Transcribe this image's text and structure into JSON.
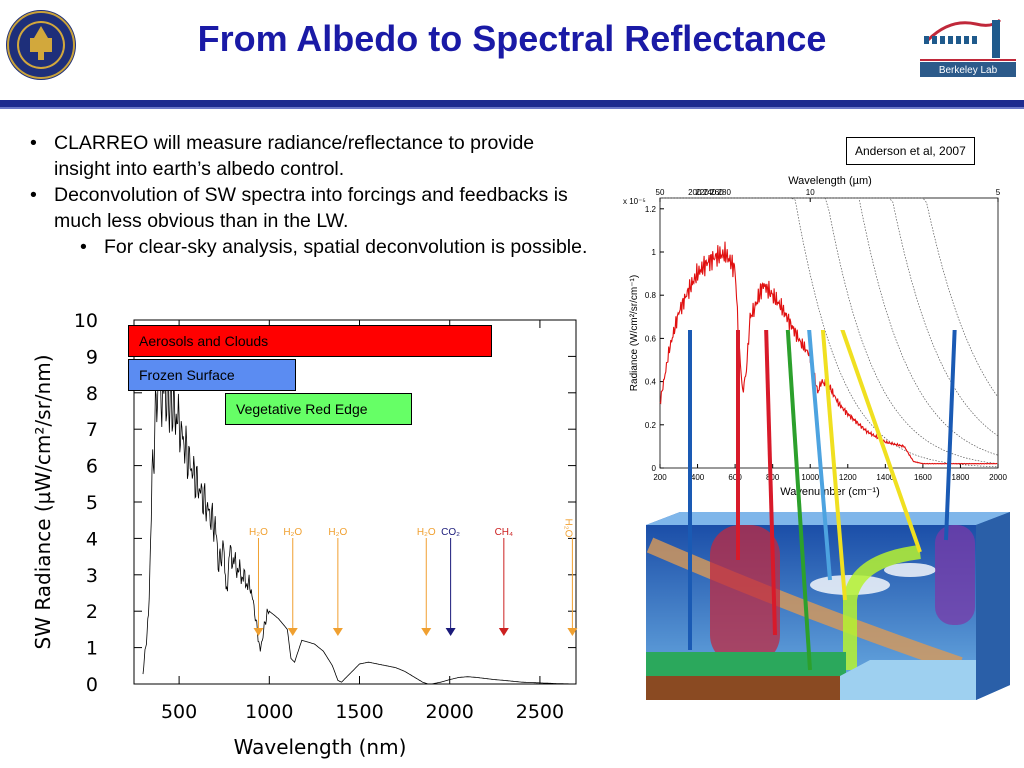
{
  "slide": {
    "title": "From Albedo to Spectral Reflectance",
    "logos": {
      "uc_seal_text": "THE UNIVERSITY OF CALIFORNIA 1868",
      "berkeley_lab_text": "Berkeley Lab"
    },
    "bullets": [
      "CLARREO will measure radiance/reflectance to provide insight into earth’s albedo control.",
      "Deconvolution of SW spectra into forcings and feedbacks is much less obvious than in the LW."
    ],
    "sub_bullets": [
      "For clear-sky analysis, spatial deconvolution is possible."
    ],
    "citation": "Anderson et al, 2007",
    "labels": {
      "aerosols": "Aerosols  and Clouds",
      "frozen": "Frozen Surface",
      "vegetative": "Vegetative  Red Edge"
    },
    "colors": {
      "title": "#1a1aa6",
      "rule": "#1c2b8f",
      "aerosols": "#ff0000",
      "frozen": "#5b8cf2",
      "vegetative": "#66ff66",
      "h2o": "#f0a030",
      "co2": "#1a1a7a",
      "ch4": "#cc2020"
    }
  },
  "chart_data": [
    {
      "type": "line",
      "ylabel": "SW Radiance (µW/cm²/sr/nm)",
      "xlabel": "Wavelength (nm)",
      "xlim": [
        250,
        2700
      ],
      "ylim": [
        0,
        10
      ],
      "xticks": [
        500,
        1000,
        1500,
        2000,
        2500
      ],
      "yticks": [
        0,
        1,
        2,
        3,
        4,
        5,
        6,
        7,
        8,
        9,
        10
      ],
      "series": [
        {
          "x": [
            300,
            330,
            350,
            380,
            400,
            420,
            450,
            480,
            500,
            550,
            600,
            650,
            700,
            720,
            750,
            760,
            780,
            820,
            860,
            900,
            930,
            950,
            980,
            1000,
            1050,
            1100,
            1120,
            1140,
            1180,
            1250,
            1300,
            1350,
            1380,
            1400,
            1450,
            1500,
            1550,
            1600,
            1650,
            1700,
            1750,
            1800,
            1850,
            1880,
            1900,
            1950,
            2000,
            2050,
            2100,
            2150,
            2200,
            2250,
            2300,
            2400,
            2500,
            2600,
            2700
          ],
          "y": [
            0.3,
            1.8,
            5.5,
            8.3,
            7.9,
            8.0,
            7.8,
            7.5,
            7.1,
            6.2,
            5.5,
            4.9,
            4.3,
            3.3,
            3.8,
            2.4,
            3.6,
            3.2,
            2.9,
            2.6,
            1.6,
            0.9,
            1.8,
            2.0,
            1.8,
            1.5,
            0.7,
            0.6,
            1.2,
            1.1,
            0.9,
            0.5,
            0.1,
            0.05,
            0.3,
            0.55,
            0.6,
            0.55,
            0.5,
            0.45,
            0.35,
            0.2,
            0.05,
            0.0,
            0.0,
            0.05,
            0.12,
            0.18,
            0.2,
            0.18,
            0.15,
            0.12,
            0.1,
            0.05,
            0.03,
            0.01,
            0.0
          ]
        }
      ],
      "absorption_markers": [
        {
          "label": "H₂O",
          "x": 940
        },
        {
          "label": "H₂O",
          "x": 1130
        },
        {
          "label": "H₂O",
          "x": 1380
        },
        {
          "label": "H₂O",
          "x": 1870
        },
        {
          "label": "CO₂",
          "x": 2005
        },
        {
          "label": "CH₄",
          "x": 2300
        },
        {
          "label": "H₂O",
          "x": 2680
        }
      ]
    },
    {
      "type": "line",
      "top_axis_label": "Wavelength (µm)",
      "top_ticks": [
        50,
        10,
        5
      ],
      "xlabel": "Wavenumber (cm⁻¹)",
      "ylabel": "Radiance (W/cm²/sr/cm⁻¹)",
      "y_multiplier": "x 10⁻⁵",
      "xlim": [
        200,
        2000
      ],
      "ylim": [
        0,
        1.25
      ],
      "xticks": [
        200,
        400,
        600,
        800,
        1000,
        1200,
        1400,
        1600,
        1800,
        2000
      ],
      "yticks": [
        0,
        0.2,
        0.4,
        0.6,
        0.8,
        1,
        1.2
      ],
      "planck_curves_K": [
        200,
        220,
        240,
        260,
        280
      ],
      "series": [
        {
          "x": [
            200,
            250,
            300,
            350,
            400,
            450,
            500,
            550,
            600,
            620,
            640,
            660,
            680,
            700,
            720,
            750,
            780,
            800,
            850,
            900,
            950,
            1000,
            1040,
            1060,
            1100,
            1150,
            1200,
            1300,
            1400,
            1500,
            1550,
            1600,
            1700,
            1800,
            1900,
            2000
          ],
          "y": [
            0.3,
            0.55,
            0.72,
            0.82,
            0.9,
            0.95,
            0.98,
            0.99,
            0.92,
            0.58,
            0.35,
            0.45,
            0.7,
            0.73,
            0.78,
            0.85,
            0.82,
            0.8,
            0.74,
            0.66,
            0.58,
            0.52,
            0.35,
            0.4,
            0.38,
            0.3,
            0.25,
            0.17,
            0.12,
            0.1,
            0.03,
            0.02,
            0.02,
            0.02,
            0.02,
            0.02
          ]
        }
      ]
    }
  ]
}
